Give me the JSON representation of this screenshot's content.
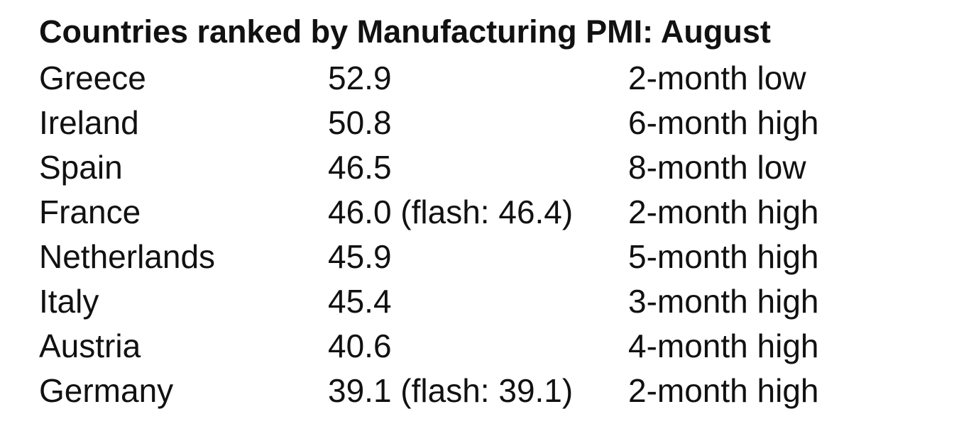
{
  "title": "Countries ranked by Manufacturing PMI: August",
  "table": {
    "rows": [
      [
        "Greece",
        "52.9",
        "2-month low"
      ],
      [
        "Ireland",
        "50.8",
        "6-month high"
      ],
      [
        "Spain",
        "46.5",
        "8-month low"
      ],
      [
        "France",
        "46.0 (flash: 46.4)",
        "2-month high"
      ],
      [
        "Netherlands",
        "45.9",
        "5-month high"
      ],
      [
        "Italy",
        "45.4",
        "3-month high"
      ],
      [
        "Austria",
        "40.6",
        "4-month high"
      ],
      [
        "Germany",
        "39.1 (flash: 39.1)",
        "2-month high"
      ]
    ]
  }
}
